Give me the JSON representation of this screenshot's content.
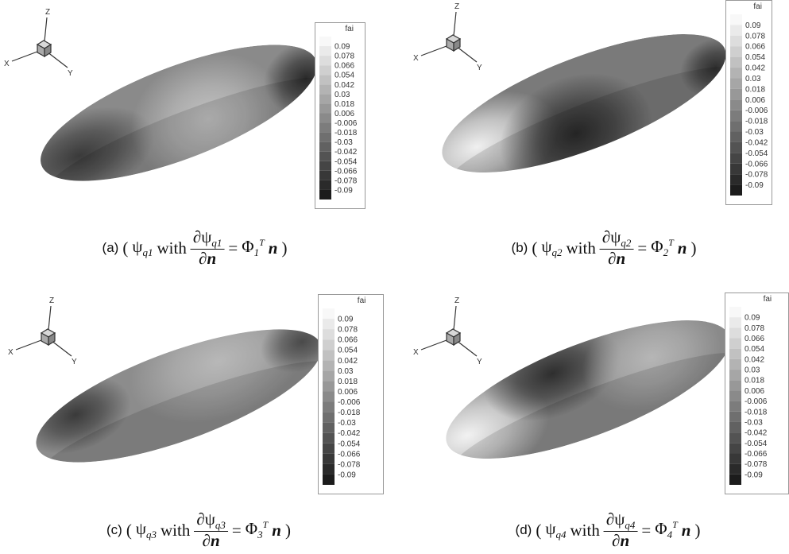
{
  "legend": {
    "title": "fai",
    "levels": [
      "0.09",
      "0.078",
      "0.066",
      "0.054",
      "0.042",
      "0.03",
      "0.018",
      "0.006",
      "-0.006",
      "-0.018",
      "-0.03",
      "-0.042",
      "-0.054",
      "-0.066",
      "-0.078",
      "-0.09"
    ]
  },
  "triad": {
    "z": "Z",
    "x": "X",
    "y": "Y"
  },
  "caption_parts": {
    "open": "(",
    "psi": "ψ",
    "with": "with",
    "partial": "∂",
    "n": "n",
    "equals": "=",
    "phi": "Φ",
    "T": "T",
    "close": ")"
  },
  "panels": [
    {
      "label": "(a)",
      "sub": "q1",
      "index": "1"
    },
    {
      "label": "(b)",
      "sub": "q2",
      "index": "2"
    },
    {
      "label": "(c)",
      "sub": "q3",
      "index": "3"
    },
    {
      "label": "(d)",
      "sub": "q4",
      "index": "4"
    }
  ]
}
